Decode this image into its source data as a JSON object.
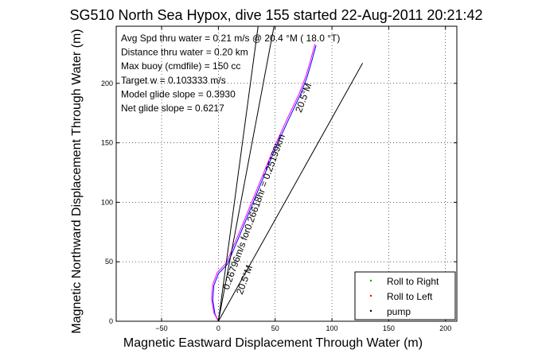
{
  "chart_data": {
    "type": "line",
    "title": "SG510 North Sea Hypox, dive 155 started 22-Aug-2011 20:21:42",
    "xlabel": "Magnetic Eastward Displacement Through Water (m)",
    "ylabel": "Magnetic Northward Displacement Through Water (m)",
    "xlim": [
      -90,
      210
    ],
    "ylim": [
      0,
      248
    ],
    "xticks": [
      -50,
      0,
      50,
      100,
      150,
      200
    ],
    "yticks": [
      0,
      50,
      100,
      150,
      200
    ],
    "xtick_labels": [
      "−50",
      "0",
      "50",
      "100",
      "150",
      "200"
    ],
    "ytick_labels": [
      "0",
      "50",
      "100",
      "150",
      "200"
    ],
    "grid": true,
    "legend_position": "bottom-right",
    "annotations": [
      "Avg Spd thru water =  0.21 m/s @  20.4    °M ( 18.0 °T)",
      "Distance thru water =  0.20 km",
      "Max buoy (cmdfile) = 150 cc",
      "Target w = 0.103333 m/s",
      "Model glide slope = 0.3930",
      "Net glide slope = 0.6217"
    ],
    "inline_labels": [
      {
        "text": "20.5°M",
        "x": 21,
        "y": 22,
        "rotate": -70
      },
      {
        "text": "0.26796m/s for0.26618hr = 0.25199km",
        "x": 9,
        "y": 26,
        "rotate": -70
      },
      {
        "text": "20.5°M",
        "x": 73,
        "y": 175,
        "rotate": -70
      }
    ],
    "series": [
      {
        "name": "Roll to Right",
        "color": "#00aa00",
        "marker": "dot",
        "x": [],
        "y": []
      },
      {
        "name": "Roll to Left",
        "color": "#ff0000",
        "marker": "dot",
        "x": [],
        "y": []
      },
      {
        "name": "pump",
        "color": "#000000",
        "marker": "dot",
        "x": [],
        "y": []
      },
      {
        "name": "",
        "color": "#0000ff",
        "marker": "none",
        "x": [
          0,
          -3,
          -5,
          -4,
          0,
          8,
          20,
          35,
          50,
          62,
          72,
          78,
          82,
          86
        ],
        "y": [
          0,
          6,
          18,
          30,
          40,
          48,
          75,
          110,
          145,
          170,
          190,
          205,
          218,
          232
        ]
      },
      {
        "name": "",
        "color": "#ff00ff",
        "marker": "none",
        "x": [
          0,
          -4,
          -6,
          -5,
          -1,
          7,
          19,
          34,
          49,
          61,
          71,
          77,
          81,
          85
        ],
        "y": [
          0,
          7,
          19,
          31,
          41,
          49,
          76,
          111,
          146,
          171,
          191,
          206,
          219,
          233
        ]
      },
      {
        "name": "",
        "color": "#000000",
        "marker": "none",
        "x": [
          0,
          127
        ],
        "y": [
          0,
          217
        ]
      },
      {
        "name": "",
        "color": "#000000",
        "marker": "none",
        "x": [
          0,
          49
        ],
        "y": [
          0,
          248
        ]
      },
      {
        "name": "",
        "color": "#000000",
        "marker": "none",
        "x": [
          0,
          35
        ],
        "y": [
          0,
          248
        ]
      }
    ]
  }
}
